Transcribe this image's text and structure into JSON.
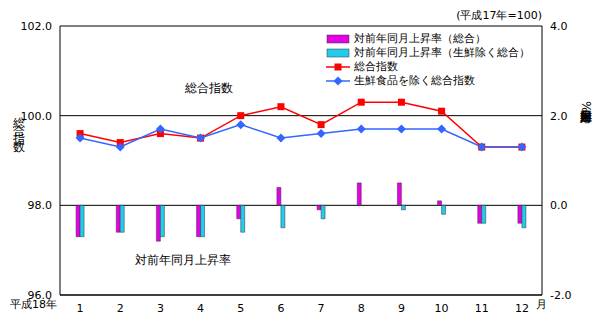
{
  "chart_data": {
    "type": "combo",
    "note": "(平成17年=100)",
    "y_label": "総合指数",
    "y2_label": "対前年同月上昇率%",
    "x_label": "平成18年",
    "x_unit": "月",
    "annotations": [
      "総合指数",
      "対前年同月上昇率"
    ],
    "categories": [
      "1",
      "2",
      "3",
      "4",
      "5",
      "6",
      "7",
      "8",
      "9",
      "10",
      "11",
      "12"
    ],
    "ylim": [
      96,
      102
    ],
    "yticks": [
      {
        "value": 96,
        "label": "96.0"
      },
      {
        "value": 98,
        "label": "98.0"
      },
      {
        "value": 100,
        "label": "100.0"
      },
      {
        "value": 102,
        "label": "102.0"
      }
    ],
    "y2lim": [
      -2,
      4
    ],
    "y2ticks": [
      {
        "value": -2,
        "label": "-2.0"
      },
      {
        "value": 0,
        "label": "0.0"
      },
      {
        "value": 2,
        "label": "2.0"
      },
      {
        "value": 4,
        "label": "4.0"
      }
    ],
    "grid": true,
    "legend": "upper right",
    "series": [
      {
        "name": "対前年同月上昇率（総合）",
        "type": "bar",
        "axis": "y2",
        "color": "#e600e6",
        "values": [
          -0.7,
          -0.6,
          -0.8,
          -0.7,
          -0.3,
          0.4,
          -0.1,
          0.5,
          0.5,
          0.1,
          -0.4,
          -0.4
        ]
      },
      {
        "name": "対前年同月上昇率（生鮮除く総合）",
        "type": "bar",
        "axis": "y2",
        "color": "#22ccee",
        "values": [
          -0.7,
          -0.6,
          -0.7,
          -0.7,
          -0.6,
          -0.5,
          -0.3,
          0.0,
          -0.1,
          -0.2,
          -0.4,
          -0.5
        ]
      },
      {
        "name": "総合指数",
        "type": "line",
        "axis": "y",
        "color": "#ff0000",
        "marker": "square",
        "values": [
          99.6,
          99.4,
          99.6,
          99.5,
          100.0,
          100.2,
          99.8,
          100.3,
          100.3,
          100.1,
          99.3,
          99.3
        ]
      },
      {
        "name": "生鮮食品を除く総合指数",
        "type": "line",
        "axis": "y",
        "color": "#3366ff",
        "marker": "diamond",
        "values": [
          99.5,
          99.3,
          99.7,
          99.5,
          99.8,
          99.5,
          99.6,
          99.7,
          99.7,
          99.7,
          99.3,
          99.3
        ]
      }
    ]
  }
}
